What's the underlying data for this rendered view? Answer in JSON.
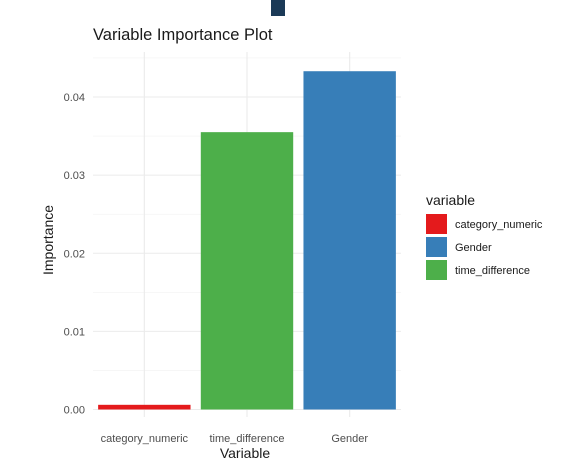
{
  "chart_data": {
    "type": "bar",
    "title": "Variable Importance Plot",
    "xlabel": "Variable",
    "ylabel": "Importance",
    "categories": [
      "category_numeric",
      "time_difference",
      "Gender"
    ],
    "values": [
      0.0006,
      0.0355,
      0.0433
    ],
    "bar_colors": [
      "#E41A1C",
      "#4DAF4A",
      "#377EB8"
    ],
    "ylim": [
      0,
      0.045
    ],
    "y_ticks": [
      "0.00",
      "0.01",
      "0.02",
      "0.03",
      "0.04"
    ],
    "y_tick_values": [
      0,
      0.01,
      0.02,
      0.03,
      0.04
    ],
    "grid": true,
    "legend": {
      "title": "variable",
      "placement": "right",
      "items": [
        {
          "label": "category_numeric",
          "color": "#E41A1C"
        },
        {
          "label": "Gender",
          "color": "#377EB8"
        },
        {
          "label": "time_difference",
          "color": "#4DAF4A"
        }
      ]
    }
  }
}
